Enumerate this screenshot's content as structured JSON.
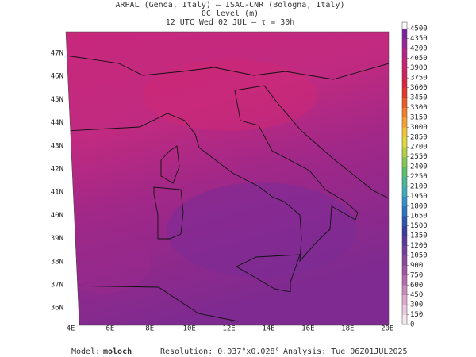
{
  "header": {
    "line1": "ARPAL (Genoa, Italy)  –  ISAC-CNR (Bologna, Italy)",
    "line2": "0C level (m)",
    "line3": "12 UTC Wed 02 JUL  –  τ = 30h"
  },
  "longitude_labels": [
    "4E",
    "6E",
    "8E",
    "10E",
    "12E",
    "14E",
    "16E",
    "18E",
    "20E"
  ],
  "latitude_labels": [
    "47N",
    "46N",
    "45N",
    "44N",
    "43N",
    "42N",
    "41N",
    "40N",
    "39N",
    "38N",
    "37N",
    "36N"
  ],
  "colorbar": {
    "levels": [
      0,
      150,
      300,
      450,
      600,
      750,
      900,
      1050,
      1200,
      1350,
      1500,
      1650,
      1800,
      1950,
      2100,
      2250,
      2400,
      2550,
      2700,
      2850,
      3000,
      3150,
      3300,
      3450,
      3600,
      3750,
      3900,
      4050,
      4200,
      4350,
      4500
    ],
    "colors": [
      "#f4e6ee",
      "#e9c9dc",
      "#ddaacb",
      "#c98bbb",
      "#b46cab",
      "#9f55a2",
      "#8a4a9c",
      "#70409a",
      "#583a9a",
      "#3b3c9f",
      "#2a55b0",
      "#2a74c0",
      "#2f92c8",
      "#3aaeb8",
      "#48b88e",
      "#5cc06a",
      "#84c850",
      "#b4d040",
      "#e0d83a",
      "#f2c432",
      "#f5a22c",
      "#f27e28",
      "#ec5a26",
      "#e2362a",
      "#d82440",
      "#cf2060",
      "#c52278",
      "#b2248a",
      "#98259a",
      "#7c23a0"
    ]
  },
  "footer": {
    "model_label": "Model:",
    "model": "moloch",
    "resolution": "Resolution: 0.037°x0.028°",
    "analysis": "Analysis: Tue 06Z01JUL2025"
  }
}
